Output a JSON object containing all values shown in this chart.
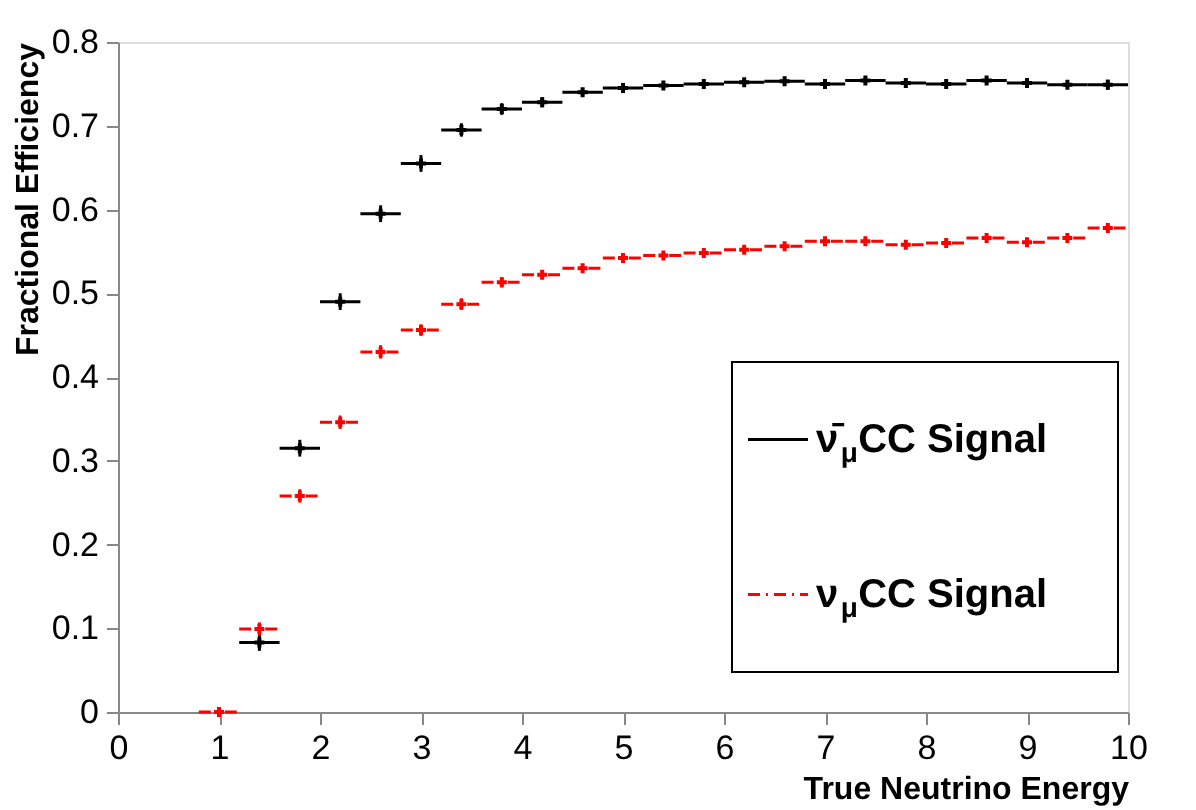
{
  "chart_data": {
    "type": "scatter",
    "xlabel": "True Neutrino Energy",
    "ylabel": "Fractional Efficiency",
    "x": [
      1.0,
      1.4,
      1.8,
      2.2,
      2.6,
      3.0,
      3.4,
      3.8,
      4.2,
      4.6,
      5.0,
      5.4,
      5.8,
      6.2,
      6.6,
      7.0,
      7.4,
      7.8,
      8.2,
      8.6,
      9.0,
      9.4,
      9.8
    ],
    "series": [
      {
        "name": "ν̄$_{μ}$CC Signal",
        "color": "#000000",
        "line_style": "solid",
        "values": [
          null,
          0.083,
          0.315,
          0.49,
          0.595,
          0.655,
          0.695,
          0.72,
          0.728,
          0.74,
          0.745,
          0.748,
          0.75,
          0.752,
          0.753,
          0.75,
          0.754,
          0.751,
          0.75,
          0.754,
          0.751,
          0.749,
          0.749
        ],
        "errors": [
          null,
          0.01,
          0.01,
          0.01,
          0.01,
          0.01,
          0.008,
          0.007,
          0.006,
          0.005,
          0.005,
          0.004,
          0.004,
          0.004,
          0.004,
          0.004,
          0.004,
          0.004,
          0.004,
          0.004,
          0.004,
          0.004,
          0.006
        ],
        "xerrors": [
          null,
          0.2,
          0.2,
          0.2,
          0.2,
          0.2,
          0.2,
          0.2,
          0.2,
          0.2,
          0.2,
          0.2,
          0.2,
          0.2,
          0.2,
          0.2,
          0.2,
          0.2,
          0.2,
          0.2,
          0.2,
          0.2,
          0.2
        ]
      },
      {
        "name": "ν$_{μ}$CC Signal",
        "color": "#ff0000",
        "line_style": "dashed",
        "values": [
          0,
          0.099,
          0.258,
          0.346,
          0.43,
          0.456,
          0.487,
          0.513,
          0.522,
          0.53,
          0.542,
          0.545,
          0.548,
          0.552,
          0.556,
          0.562,
          0.562,
          0.558,
          0.56,
          0.566,
          0.561,
          0.566,
          0.578
        ],
        "errors": [
          0.002,
          0.008,
          0.008,
          0.008,
          0.008,
          0.007,
          0.007,
          0.006,
          0.005,
          0.005,
          0.004,
          0.004,
          0.004,
          0.004,
          0.004,
          0.004,
          0.004,
          0.004,
          0.004,
          0.004,
          0.004,
          0.004,
          0.006
        ],
        "xerrors": [
          0.2,
          0.2,
          0.2,
          0.2,
          0.2,
          0.2,
          0.2,
          0.2,
          0.2,
          0.2,
          0.2,
          0.2,
          0.2,
          0.2,
          0.2,
          0.2,
          0.2,
          0.2,
          0.2,
          0.2,
          0.2,
          0.2,
          0.2
        ]
      }
    ],
    "xlim": [
      0,
      10
    ],
    "xticks": [
      0,
      1,
      2,
      3,
      4,
      5,
      6,
      7,
      8,
      9,
      10
    ],
    "ylim": [
      0,
      0.8
    ],
    "yticks": [
      0,
      0.1,
      0.2,
      0.3,
      0.4,
      0.5,
      0.6,
      0.7,
      0.8
    ],
    "grid": false,
    "marker": "cross",
    "legend": "bottom right"
  }
}
